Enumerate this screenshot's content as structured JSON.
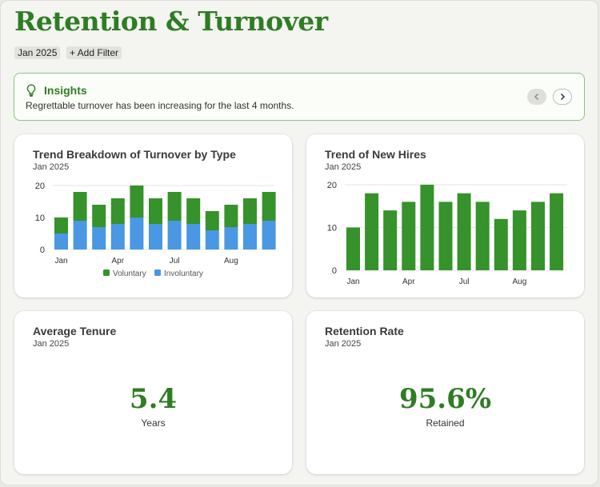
{
  "page": {
    "title": "Retention & Turnover",
    "chips": {
      "date": "Jan 2025",
      "add_filter": "+ Add Filter"
    }
  },
  "insights": {
    "icon": "lightbulb-icon",
    "title": "Insights",
    "text": "Regrettable turnover has been increasing for the last 4 months.",
    "prev_icon": "chevron-left-icon",
    "next_icon": "chevron-right-icon"
  },
  "cards": {
    "turnover": {
      "title": "Trend Breakdown of Turnover by Type",
      "subtitle": "Jan 2025"
    },
    "hires": {
      "title": "Trend of New Hires",
      "subtitle": "Jan 2025"
    },
    "tenure": {
      "title": "Average Tenure",
      "subtitle": "Jan 2025",
      "value": "5.4",
      "caption": "Years"
    },
    "retention": {
      "title": "Retention Rate",
      "subtitle": "Jan 2025",
      "value": "95.6%",
      "caption": "Retained"
    }
  },
  "colors": {
    "accent": "#2e7d23",
    "voluntary": "#36922a",
    "involuntary": "#4a97e3"
  },
  "chart_data": [
    {
      "type": "bar",
      "stacked": true,
      "title": "Trend Breakdown of Turnover by Type",
      "x_tick_labels": [
        "Jan",
        "Apr",
        "Jul",
        "Aug"
      ],
      "x_tick_positions": [
        0,
        3,
        6,
        9
      ],
      "y_ticks": [
        0,
        10,
        20
      ],
      "ylim": [
        0,
        20
      ],
      "grid": true,
      "legend": "bottom",
      "series": [
        {
          "name": "Involuntary",
          "color": "#4a97e3",
          "values": [
            5,
            9,
            7,
            8,
            10,
            8,
            9,
            8,
            6,
            7,
            8,
            9
          ]
        },
        {
          "name": "Voluntary",
          "color": "#36922a",
          "values": [
            5,
            9,
            7,
            8,
            10,
            8,
            9,
            8,
            6,
            7,
            8,
            9
          ]
        }
      ],
      "legend_order": [
        "Voluntary",
        "Involuntary"
      ]
    },
    {
      "type": "bar",
      "title": "Trend of New Hires",
      "x_tick_labels": [
        "Jan",
        "Apr",
        "Jul",
        "Aug"
      ],
      "x_tick_positions": [
        0,
        3,
        6,
        9
      ],
      "y_ticks": [
        0,
        10,
        20
      ],
      "ylim": [
        0,
        20
      ],
      "grid": true,
      "values": [
        10,
        18,
        14,
        16,
        20,
        16,
        18,
        16,
        12,
        14,
        16,
        18
      ],
      "color": "#36922a"
    }
  ]
}
